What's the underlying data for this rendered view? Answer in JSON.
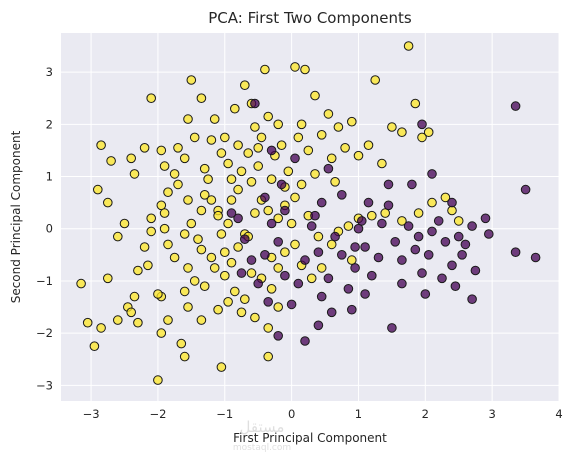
{
  "chart_data": {
    "type": "scatter",
    "title": "PCA: First Two Components",
    "xlabel": "First Principal Component",
    "ylabel": "Second Principal Component",
    "xlim": [
      -3.45,
      4.0
    ],
    "ylim": [
      -3.3,
      3.75
    ],
    "xticks": [
      "−3",
      "−2",
      "−1",
      "0",
      "1",
      "2",
      "3",
      "4"
    ],
    "yticks": [
      "−3",
      "−2",
      "−1",
      "0",
      "1",
      "2",
      "3"
    ],
    "grid": true,
    "style": {
      "background": "#eaeaf2",
      "grid_color": "#ffffff",
      "marker_edge": "#1a1a1a",
      "marker_alpha": 0.75
    },
    "series": [
      {
        "color": "#fde725",
        "points": [
          [
            -2.95,
            -2.25
          ],
          [
            -3.05,
            -1.8
          ],
          [
            -2.85,
            -1.9
          ],
          [
            -2.6,
            -1.75
          ],
          [
            -2.3,
            -1.8
          ],
          [
            -1.95,
            -1.3
          ],
          [
            -2.0,
            -1.25
          ],
          [
            -2.45,
            -1.5
          ],
          [
            -2.35,
            -1.3
          ],
          [
            -2.4,
            -1.6
          ],
          [
            -2.75,
            -0.95
          ],
          [
            -2.6,
            -0.15
          ],
          [
            -2.2,
            -0.35
          ],
          [
            -2.1,
            -0.05
          ],
          [
            -2.15,
            -0.7
          ],
          [
            -2.3,
            -0.8
          ],
          [
            -2.1,
            0.2
          ],
          [
            -1.9,
            0.0
          ],
          [
            -1.85,
            -0.3
          ],
          [
            -1.75,
            -0.55
          ],
          [
            -1.95,
            0.45
          ],
          [
            -1.85,
            0.7
          ],
          [
            -1.7,
            0.85
          ],
          [
            -1.55,
            0.55
          ],
          [
            -1.5,
            0.1
          ],
          [
            -1.6,
            -0.1
          ],
          [
            -1.4,
            -0.2
          ],
          [
            -1.35,
            0.35
          ],
          [
            -1.2,
            0.55
          ],
          [
            -1.1,
            0.35
          ],
          [
            -1.05,
            -0.1
          ],
          [
            -0.95,
            0.1
          ],
          [
            -0.9,
            0.55
          ],
          [
            -0.8,
            0.75
          ],
          [
            -1.0,
            -0.45
          ],
          [
            -1.2,
            -0.55
          ],
          [
            -1.35,
            -0.4
          ],
          [
            -1.55,
            -0.75
          ],
          [
            -1.45,
            -1.0
          ],
          [
            -1.6,
            -1.2
          ],
          [
            -1.3,
            -1.1
          ],
          [
            -1.15,
            -0.75
          ],
          [
            -1.0,
            -0.9
          ],
          [
            -0.9,
            -0.65
          ],
          [
            -0.8,
            -0.35
          ],
          [
            -0.7,
            -0.1
          ],
          [
            -0.55,
            0.3
          ],
          [
            -0.45,
            0.55
          ],
          [
            -0.35,
            0.35
          ],
          [
            -0.2,
            0.2
          ],
          [
            -0.1,
            0.45
          ],
          [
            0.05,
            0.6
          ],
          [
            0.15,
            0.85
          ],
          [
            0.25,
            0.25
          ],
          [
            -0.85,
            -1.2
          ],
          [
            -0.7,
            -1.35
          ],
          [
            -0.6,
            -0.85
          ],
          [
            -0.45,
            -0.95
          ],
          [
            -0.3,
            -1.15
          ],
          [
            -0.2,
            -0.75
          ],
          [
            -0.1,
            -0.45
          ],
          [
            0.05,
            -0.3
          ],
          [
            0.15,
            -0.7
          ],
          [
            0.3,
            -0.95
          ],
          [
            0.45,
            -0.75
          ],
          [
            0.6,
            -0.3
          ],
          [
            0.7,
            -0.05
          ],
          [
            0.85,
            0.05
          ],
          [
            1.0,
            0.2
          ],
          [
            1.2,
            0.25
          ],
          [
            1.4,
            0.3
          ],
          [
            1.65,
            0.15
          ],
          [
            1.9,
            0.3
          ],
          [
            2.1,
            0.5
          ],
          [
            2.3,
            0.6
          ],
          [
            2.4,
            0.35
          ],
          [
            2.5,
            0.15
          ],
          [
            -1.85,
            -1.75
          ],
          [
            -1.55,
            -1.5
          ],
          [
            -1.35,
            -1.75
          ],
          [
            -1.1,
            -1.55
          ],
          [
            -0.95,
            -1.4
          ],
          [
            -0.75,
            -1.6
          ],
          [
            -0.55,
            -1.7
          ],
          [
            -0.35,
            -1.9
          ],
          [
            -0.2,
            -1.5
          ],
          [
            -1.6,
            -2.45
          ],
          [
            -1.05,
            -2.65
          ],
          [
            -0.35,
            -2.45
          ],
          [
            -1.95,
            -2.0
          ],
          [
            -1.65,
            -2.2
          ],
          [
            -2.0,
            -2.9
          ],
          [
            -3.15,
            -1.05
          ],
          [
            -2.9,
            0.75
          ],
          [
            -2.85,
            1.6
          ],
          [
            -2.75,
            0.5
          ],
          [
            -2.4,
            1.35
          ],
          [
            -2.35,
            1.05
          ],
          [
            -2.2,
            1.55
          ],
          [
            -2.1,
            2.5
          ],
          [
            -1.95,
            1.5
          ],
          [
            -1.9,
            1.2
          ],
          [
            -1.75,
            1.05
          ],
          [
            -1.7,
            1.55
          ],
          [
            -1.6,
            1.35
          ],
          [
            -1.55,
            2.1
          ],
          [
            -1.5,
            2.85
          ],
          [
            -1.45,
            1.75
          ],
          [
            -1.35,
            2.5
          ],
          [
            -1.3,
            1.15
          ],
          [
            -1.25,
            0.95
          ],
          [
            -1.2,
            1.7
          ],
          [
            -1.15,
            2.1
          ],
          [
            -1.05,
            1.45
          ],
          [
            -1.0,
            1.75
          ],
          [
            -0.95,
            1.25
          ],
          [
            -0.9,
            0.95
          ],
          [
            -0.85,
            2.3
          ],
          [
            -0.8,
            1.6
          ],
          [
            -0.75,
            1.1
          ],
          [
            -0.7,
            2.75
          ],
          [
            -0.65,
            1.45
          ],
          [
            -0.6,
            0.9
          ],
          [
            -0.55,
            1.95
          ],
          [
            -0.5,
            1.2
          ],
          [
            -0.45,
            1.75
          ],
          [
            -0.4,
            3.05
          ],
          [
            -0.35,
            2.15
          ],
          [
            -0.3,
            0.95
          ],
          [
            -0.25,
            1.4
          ],
          [
            -0.2,
            2.0
          ],
          [
            -0.15,
            1.6
          ],
          [
            -0.1,
            0.8
          ],
          [
            -0.05,
            1.1
          ],
          [
            0.05,
            3.1
          ],
          [
            0.15,
            2.0
          ],
          [
            0.25,
            1.5
          ],
          [
            0.35,
            1.05
          ],
          [
            0.45,
            1.8
          ],
          [
            0.55,
            2.2
          ],
          [
            0.6,
            1.35
          ],
          [
            0.65,
            0.9
          ],
          [
            0.7,
            1.95
          ],
          [
            0.8,
            1.55
          ],
          [
            0.9,
            2.05
          ],
          [
            1.0,
            1.4
          ],
          [
            1.15,
            1.6
          ],
          [
            1.25,
            2.85
          ],
          [
            1.35,
            1.25
          ],
          [
            1.5,
            1.95
          ],
          [
            1.65,
            1.85
          ],
          [
            1.75,
            3.5
          ],
          [
            1.85,
            2.4
          ],
          [
            1.95,
            1.75
          ],
          [
            2.05,
            1.85
          ],
          [
            0.2,
            3.05
          ],
          [
            -0.5,
            1.55
          ],
          [
            -1.1,
            0.25
          ],
          [
            -0.3,
            -0.55
          ],
          [
            0.9,
            -0.6
          ],
          [
            -2.5,
            0.1
          ],
          [
            -1.3,
            0.65
          ],
          [
            0.0,
            0.1
          ],
          [
            0.4,
            -0.15
          ],
          [
            -0.65,
            -0.15
          ],
          [
            -2.7,
            1.3
          ],
          [
            -1.9,
            0.3
          ],
          [
            -0.6,
            2.4
          ],
          [
            0.1,
            1.75
          ],
          [
            0.35,
            2.55
          ]
        ]
      },
      {
        "color": "#440154",
        "points": [
          [
            3.35,
            2.35
          ],
          [
            3.5,
            0.75
          ],
          [
            3.35,
            -0.45
          ],
          [
            3.65,
            -0.55
          ],
          [
            2.9,
            0.2
          ],
          [
            2.95,
            -0.1
          ],
          [
            2.7,
            0.05
          ],
          [
            2.6,
            -0.3
          ],
          [
            2.75,
            -0.8
          ],
          [
            2.4,
            -0.7
          ],
          [
            2.3,
            -0.25
          ],
          [
            2.2,
            0.15
          ],
          [
            2.1,
            -0.05
          ],
          [
            2.05,
            -0.5
          ],
          [
            1.95,
            -0.85
          ],
          [
            1.85,
            -0.4
          ],
          [
            1.75,
            0.05
          ],
          [
            1.65,
            -0.6
          ],
          [
            1.55,
            -0.25
          ],
          [
            1.45,
            0.45
          ],
          [
            1.35,
            0.1
          ],
          [
            1.3,
            -0.55
          ],
          [
            1.2,
            -0.9
          ],
          [
            1.1,
            -0.35
          ],
          [
            1.0,
            0.0
          ],
          [
            0.95,
            -0.75
          ],
          [
            0.85,
            -1.15
          ],
          [
            0.75,
            -0.5
          ],
          [
            0.65,
            -0.15
          ],
          [
            0.55,
            -0.95
          ],
          [
            0.45,
            -1.3
          ],
          [
            0.4,
            -0.45
          ],
          [
            0.3,
            0.05
          ],
          [
            0.2,
            -0.6
          ],
          [
            0.1,
            -1.05
          ],
          [
            0.0,
            -1.45
          ],
          [
            -0.1,
            -0.9
          ],
          [
            -0.2,
            -0.25
          ],
          [
            -0.3,
            0.1
          ],
          [
            -0.4,
            -0.5
          ],
          [
            -0.5,
            -1.05
          ],
          [
            -0.6,
            -0.6
          ],
          [
            -0.7,
            -0.2
          ],
          [
            -0.8,
            0.2
          ],
          [
            -0.35,
            -1.4
          ],
          [
            -0.2,
            -2.05
          ],
          [
            0.2,
            -2.15
          ],
          [
            0.4,
            -1.85
          ],
          [
            0.6,
            -1.6
          ],
          [
            0.9,
            -1.55
          ],
          [
            1.1,
            -1.25
          ],
          [
            1.5,
            -1.9
          ],
          [
            2.0,
            -1.25
          ],
          [
            2.45,
            -1.1
          ],
          [
            2.7,
            -1.35
          ],
          [
            0.05,
            1.35
          ],
          [
            0.55,
            1.15
          ],
          [
            0.75,
            0.65
          ],
          [
            1.15,
            0.5
          ],
          [
            1.45,
            0.85
          ],
          [
            1.8,
            0.85
          ],
          [
            2.1,
            1.05
          ],
          [
            2.4,
            0.5
          ],
          [
            1.95,
            2.0
          ],
          [
            0.35,
            0.25
          ],
          [
            -0.1,
            0.35
          ],
          [
            -0.4,
            0.6
          ],
          [
            -0.9,
            0.3
          ],
          [
            -0.75,
            -0.85
          ],
          [
            0.95,
            -0.35
          ],
          [
            1.65,
            -1.05
          ],
          [
            2.25,
            -0.95
          ],
          [
            2.5,
            -0.15
          ],
          [
            -0.55,
            2.4
          ],
          [
            -0.3,
            1.5
          ],
          [
            -0.15,
            0.85
          ],
          [
            0.45,
            0.5
          ],
          [
            1.05,
            0.15
          ],
          [
            1.9,
            -0.15
          ],
          [
            2.55,
            -0.5
          ]
        ]
      }
    ]
  },
  "watermark": {
    "line1": "مستقل",
    "line2": "mostaql.com"
  }
}
